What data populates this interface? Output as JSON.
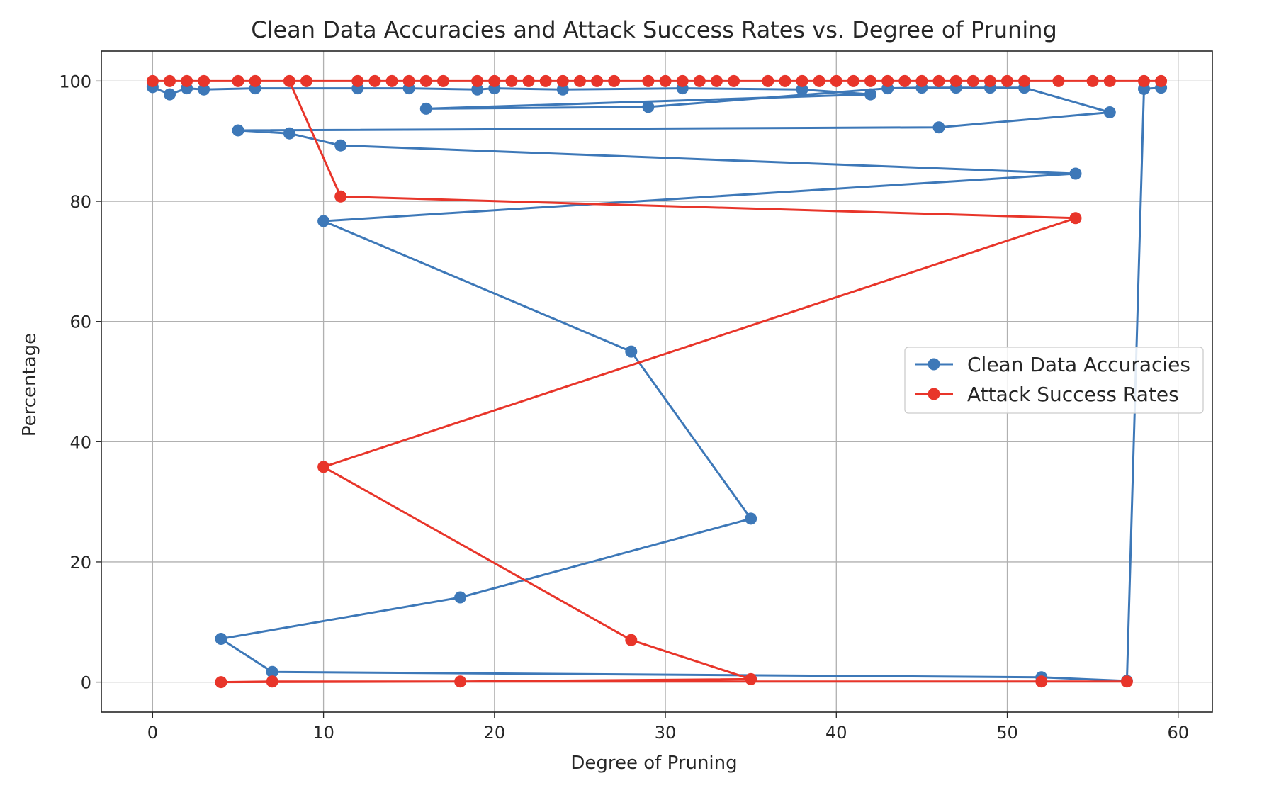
{
  "chart_data": {
    "type": "line",
    "title": "Clean Data Accuracies and Attack Success Rates vs. Degree of Pruning",
    "xlabel": "Degree of Pruning",
    "ylabel": "Percentage",
    "xlim": [
      -3,
      62
    ],
    "ylim": [
      -5,
      105
    ],
    "xticks": [
      0,
      10,
      20,
      30,
      40,
      50,
      60
    ],
    "yticks": [
      0,
      20,
      40,
      60,
      80,
      100
    ],
    "grid": true,
    "legend_position": "center-right",
    "series": [
      {
        "name": "Clean Data Accuracies",
        "color": "#3d78b8",
        "x": [
          0,
          1,
          2,
          3,
          6,
          12,
          15,
          19,
          20,
          24,
          31,
          38,
          42,
          16,
          29,
          43,
          45,
          47,
          49,
          51,
          56,
          46,
          5,
          8,
          11,
          54,
          10,
          28,
          35,
          18,
          4,
          7,
          52,
          57,
          58,
          59
        ],
        "y": [
          99,
          97.8,
          98.8,
          98.6,
          98.8,
          98.8,
          98.8,
          98.6,
          98.8,
          98.6,
          98.8,
          98.6,
          97.8,
          95.4,
          95.7,
          98.8,
          98.9,
          98.9,
          98.9,
          98.9,
          94.8,
          92.3,
          91.8,
          91.3,
          89.3,
          84.6,
          76.7,
          55,
          27.2,
          14.1,
          7.2,
          1.7,
          0.8,
          0.2,
          98.7,
          98.9
        ]
      },
      {
        "name": "Attack Success Rates",
        "color": "#e8352a",
        "x": [
          0,
          1,
          2,
          3,
          5,
          6,
          9,
          12,
          13,
          14,
          15,
          16,
          17,
          19,
          20,
          21,
          22,
          23,
          24,
          25,
          26,
          27,
          29,
          30,
          31,
          32,
          33,
          34,
          36,
          37,
          38,
          39,
          40,
          41,
          42,
          43,
          44,
          45,
          46,
          47,
          48,
          49,
          50,
          51,
          53,
          55,
          56,
          58,
          59,
          8,
          11,
          54,
          10,
          28,
          35,
          18,
          4,
          7,
          52,
          57
        ],
        "y": [
          100,
          100,
          100,
          100,
          100,
          100,
          100,
          100,
          100,
          100,
          100,
          100,
          100,
          100,
          100,
          100,
          100,
          100,
          100,
          100,
          100,
          100,
          100,
          100,
          100,
          100,
          100,
          100,
          100,
          100,
          100,
          100,
          100,
          100,
          100,
          100,
          100,
          100,
          100,
          100,
          100,
          100,
          100,
          100,
          100,
          100,
          100,
          100,
          100,
          100,
          80.8,
          77.2,
          35.8,
          7,
          0.5,
          0.1,
          0,
          0.1,
          0.1,
          0.1
        ]
      }
    ]
  }
}
